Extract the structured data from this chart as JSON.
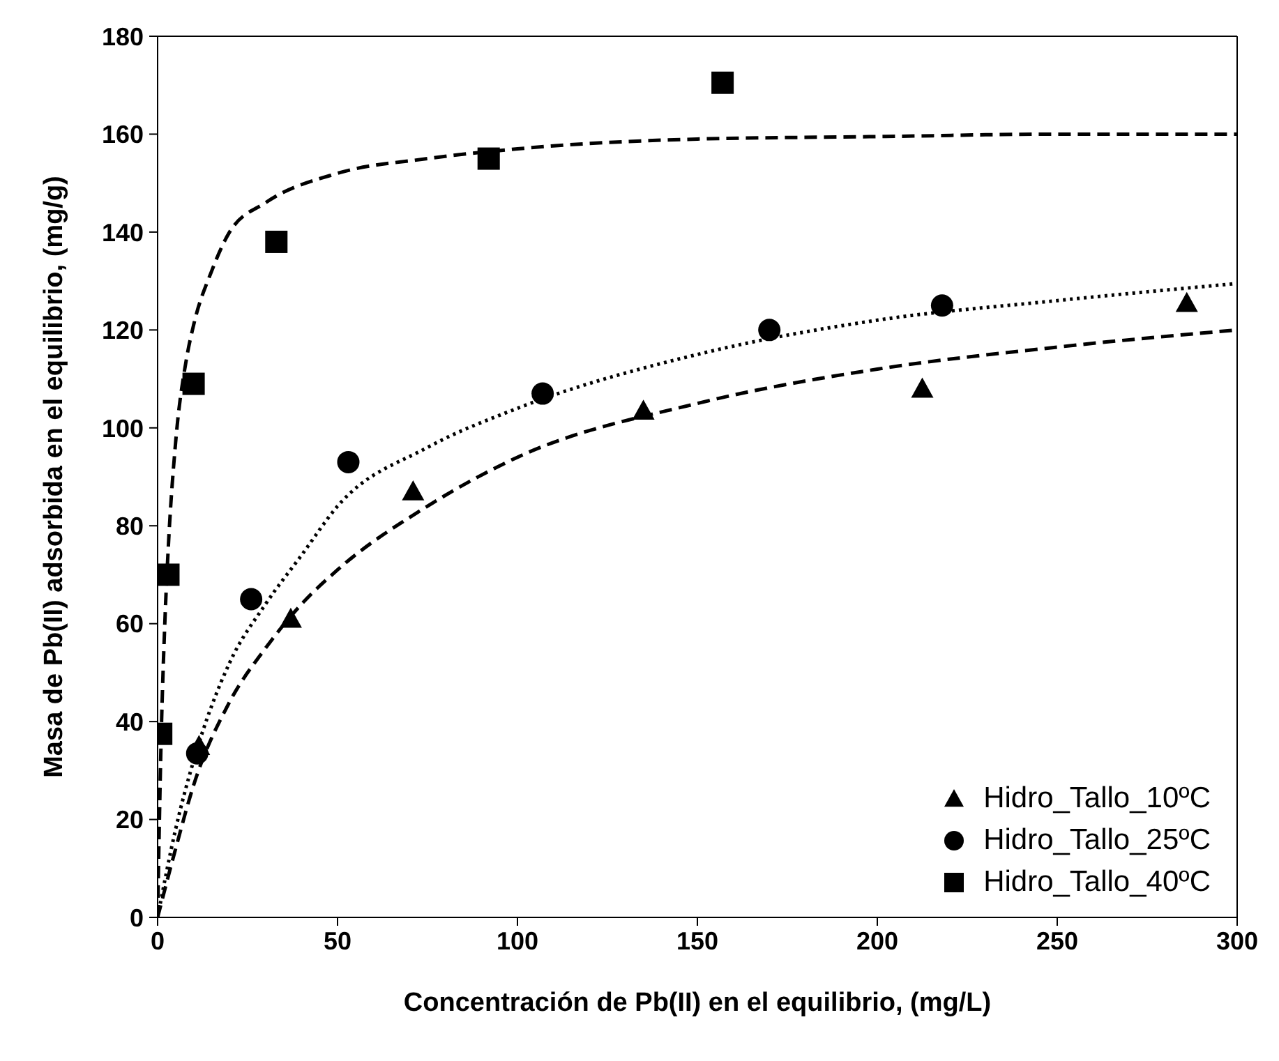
{
  "chart_data": {
    "type": "scatter",
    "xlabel": "Concentración de Pb(II) en el equilibrio, (mg/L)",
    "ylabel": "Masa de Pb(II) adsorbida en el equilibrio, (mg/g)",
    "xlim": [
      0,
      300
    ],
    "xticks": [
      0,
      50,
      100,
      150,
      200,
      250,
      300
    ],
    "ylim": [
      0,
      180
    ],
    "yticks": [
      0,
      20,
      40,
      60,
      80,
      100,
      120,
      140,
      160,
      180
    ],
    "grid": false,
    "legend": "bottom right",
    "series": [
      {
        "name": "Hidro_Tallo_10ºC",
        "marker": "triangle",
        "color": "#000000",
        "x": [
          11.5,
          37,
          71,
          135,
          212.5,
          286
        ],
        "values": [
          35,
          61,
          87,
          103.5,
          108,
          125.5
        ]
      },
      {
        "name": "Hidro_Tallo_25ºC",
        "marker": "circle",
        "color": "#000000",
        "x": [
          11,
          26,
          53,
          107,
          170,
          218
        ],
        "values": [
          33.5,
          65,
          93,
          107,
          120,
          125
        ]
      },
      {
        "name": "Hidro_Tallo_40ºC",
        "marker": "square",
        "color": "#000000",
        "x": [
          1,
          3,
          10,
          33,
          92,
          157
        ],
        "values": [
          37.5,
          70,
          109,
          138,
          155,
          170.5
        ]
      },
      {
        "type": "line",
        "line_style": "dashed",
        "marker": "none",
        "color": "#000000",
        "x": [
          0,
          5,
          10,
          20,
          30,
          40,
          50,
          75,
          100,
          150,
          200,
          250,
          300
        ],
        "values": [
          0,
          14,
          27,
          44,
          55,
          64,
          71,
          84,
          94,
          105,
          112,
          116.5,
          120
        ]
      },
      {
        "type": "line",
        "line_style": "dotted",
        "marker": "none",
        "color": "#000000",
        "x": [
          0,
          5,
          10,
          20,
          30,
          40,
          50,
          75,
          100,
          150,
          200,
          250,
          300
        ],
        "values": [
          0,
          18,
          32,
          52,
          64,
          74,
          84,
          96,
          104,
          115,
          122,
          126,
          129.5
        ]
      },
      {
        "type": "line",
        "line_style": "dashed",
        "marker": "none",
        "color": "#000000",
        "x": [
          0,
          1,
          2,
          3,
          5,
          8,
          10,
          15,
          20,
          30,
          50,
          75,
          100,
          150,
          200,
          250,
          300
        ],
        "values": [
          0,
          37,
          60,
          76,
          97,
          114,
          121,
          132,
          140,
          146,
          152,
          155,
          157,
          159,
          159.5,
          160,
          160
        ]
      }
    ]
  }
}
